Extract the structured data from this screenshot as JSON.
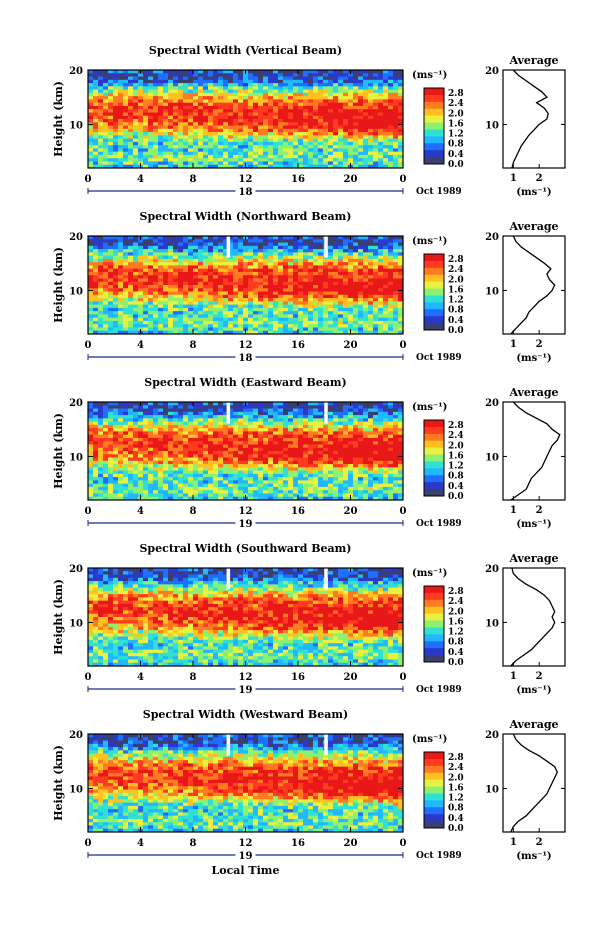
{
  "chart_data": [
    {
      "type": "heatmap",
      "title": "Spectral Width (Vertical Beam)",
      "ylabel": "Height (km)",
      "y_ticks": [
        "20",
        "10"
      ],
      "x_ticks": [
        "0",
        "4",
        "8",
        "12",
        "16",
        "20",
        "0"
      ],
      "date_label": "18",
      "date_suffix": "Oct 1989",
      "unit_label": "(ms⁻¹)",
      "colorbar_ticks": [
        "2.8",
        "2.4",
        "2.0",
        "1.6",
        "1.2",
        "0.8",
        "0.4",
        "0.0"
      ],
      "colorbar_range": [
        0.0,
        2.8
      ],
      "profile_title": "Average",
      "profile_y_ticks": [
        "20",
        "10"
      ],
      "profile_x_ticks": [
        "1",
        "2"
      ],
      "profile_xlabel": "(ms⁻¹)",
      "profile": [
        [
          0.95,
          2
        ],
        [
          1.0,
          3
        ],
        [
          1.1,
          4
        ],
        [
          1.2,
          5
        ],
        [
          1.3,
          6
        ],
        [
          1.45,
          7
        ],
        [
          1.6,
          8
        ],
        [
          1.8,
          9
        ],
        [
          2.0,
          10
        ],
        [
          2.3,
          11
        ],
        [
          2.35,
          12
        ],
        [
          2.2,
          13
        ],
        [
          1.9,
          14
        ],
        [
          2.3,
          15
        ],
        [
          2.1,
          16
        ],
        [
          1.8,
          17
        ],
        [
          1.5,
          18
        ],
        [
          1.2,
          19
        ],
        [
          1.0,
          20
        ]
      ]
    },
    {
      "type": "heatmap",
      "title": "Spectral Width (Northward Beam)",
      "ylabel": "Height (km)",
      "y_ticks": [
        "20",
        "10"
      ],
      "x_ticks": [
        "0",
        "4",
        "8",
        "12",
        "16",
        "20",
        "0"
      ],
      "date_label": "18",
      "date_suffix": "Oct 1989",
      "unit_label": "(ms⁻¹)",
      "colorbar_ticks": [
        "2.8",
        "2.4",
        "2.0",
        "1.6",
        "1.2",
        "0.8",
        "0.4",
        "0.0"
      ],
      "colorbar_range": [
        0.0,
        2.8
      ],
      "profile_title": "Average",
      "profile_y_ticks": [
        "20",
        "10"
      ],
      "profile_x_ticks": [
        "1",
        "2"
      ],
      "profile_xlabel": "(ms⁻¹)",
      "profile": [
        [
          0.9,
          2
        ],
        [
          1.1,
          3
        ],
        [
          1.3,
          4
        ],
        [
          1.5,
          5
        ],
        [
          1.6,
          6
        ],
        [
          1.8,
          7
        ],
        [
          2.0,
          8
        ],
        [
          2.3,
          9
        ],
        [
          2.5,
          10
        ],
        [
          2.6,
          11
        ],
        [
          2.4,
          12
        ],
        [
          2.3,
          13
        ],
        [
          2.45,
          14
        ],
        [
          2.2,
          15
        ],
        [
          1.9,
          16
        ],
        [
          1.6,
          17
        ],
        [
          1.3,
          18
        ],
        [
          1.1,
          19
        ],
        [
          1.0,
          20
        ]
      ]
    },
    {
      "type": "heatmap",
      "title": "Spectral Width (Eastward Beam)",
      "ylabel": "Height (km)",
      "y_ticks": [
        "20",
        "10"
      ],
      "x_ticks": [
        "0",
        "4",
        "8",
        "12",
        "16",
        "20",
        "0"
      ],
      "date_label": "19",
      "date_suffix": "Oct 1989",
      "unit_label": "(ms⁻¹)",
      "colorbar_ticks": [
        "2.8",
        "2.4",
        "2.0",
        "1.6",
        "1.2",
        "0.8",
        "0.4",
        "0.0"
      ],
      "colorbar_range": [
        0.0,
        2.8
      ],
      "profile_title": "Average",
      "profile_y_ticks": [
        "20",
        "10"
      ],
      "profile_x_ticks": [
        "1",
        "2"
      ],
      "profile_xlabel": "(ms⁻¹)",
      "profile": [
        [
          0.9,
          2
        ],
        [
          1.2,
          3
        ],
        [
          1.5,
          4
        ],
        [
          1.6,
          5
        ],
        [
          1.7,
          6
        ],
        [
          1.9,
          7
        ],
        [
          2.1,
          8
        ],
        [
          2.2,
          9
        ],
        [
          2.3,
          10
        ],
        [
          2.4,
          11
        ],
        [
          2.5,
          12
        ],
        [
          2.7,
          13
        ],
        [
          2.8,
          14
        ],
        [
          2.5,
          15
        ],
        [
          2.3,
          16
        ],
        [
          1.9,
          17
        ],
        [
          1.5,
          18
        ],
        [
          1.2,
          19
        ],
        [
          1.0,
          20
        ]
      ]
    },
    {
      "type": "heatmap",
      "title": "Spectral Width (Southward Beam)",
      "ylabel": "Height (km)",
      "y_ticks": [
        "20",
        "10"
      ],
      "x_ticks": [
        "0",
        "4",
        "8",
        "12",
        "16",
        "20",
        "0"
      ],
      "date_label": "19",
      "date_suffix": "Oct 1989",
      "unit_label": "(ms⁻¹)",
      "colorbar_ticks": [
        "2.8",
        "2.4",
        "2.0",
        "1.6",
        "1.2",
        "0.8",
        "0.4",
        "0.0"
      ],
      "colorbar_range": [
        0.0,
        2.8
      ],
      "profile_title": "Average",
      "profile_y_ticks": [
        "20",
        "10"
      ],
      "profile_x_ticks": [
        "1",
        "2"
      ],
      "profile_xlabel": "(ms⁻¹)",
      "profile": [
        [
          0.9,
          2
        ],
        [
          1.1,
          3
        ],
        [
          1.4,
          4
        ],
        [
          1.7,
          5
        ],
        [
          1.9,
          6
        ],
        [
          2.1,
          7
        ],
        [
          2.3,
          8
        ],
        [
          2.5,
          9
        ],
        [
          2.6,
          10
        ],
        [
          2.5,
          11
        ],
        [
          2.6,
          12
        ],
        [
          2.5,
          13
        ],
        [
          2.4,
          14
        ],
        [
          2.2,
          15
        ],
        [
          1.9,
          16
        ],
        [
          1.5,
          17
        ],
        [
          1.2,
          18
        ],
        [
          1.0,
          19
        ],
        [
          0.95,
          20
        ]
      ]
    },
    {
      "type": "heatmap",
      "title": "Spectral Width (Westward Beam)",
      "ylabel": "Height (km)",
      "y_ticks": [
        "20",
        "10"
      ],
      "x_ticks": [
        "0",
        "4",
        "8",
        "12",
        "16",
        "20",
        "0"
      ],
      "date_label": "19",
      "date_suffix": "Oct 1989",
      "unit_label": "(ms⁻¹)",
      "colorbar_ticks": [
        "2.8",
        "2.4",
        "2.0",
        "1.6",
        "1.2",
        "0.8",
        "0.4",
        "0.0"
      ],
      "colorbar_range": [
        0.0,
        2.8
      ],
      "profile_title": "Average",
      "profile_y_ticks": [
        "20",
        "10"
      ],
      "profile_x_ticks": [
        "1",
        "2"
      ],
      "profile_xlabel": "(ms⁻¹)",
      "profile": [
        [
          0.9,
          2
        ],
        [
          1.0,
          3
        ],
        [
          1.2,
          4
        ],
        [
          1.5,
          5
        ],
        [
          1.7,
          6
        ],
        [
          1.9,
          7
        ],
        [
          2.1,
          8
        ],
        [
          2.3,
          9
        ],
        [
          2.4,
          10
        ],
        [
          2.5,
          11
        ],
        [
          2.6,
          12
        ],
        [
          2.7,
          13
        ],
        [
          2.6,
          14
        ],
        [
          2.3,
          15
        ],
        [
          2.0,
          16
        ],
        [
          1.6,
          17
        ],
        [
          1.3,
          18
        ],
        [
          1.1,
          19
        ],
        [
          1.0,
          20
        ]
      ]
    }
  ],
  "figure": {
    "xlabel": "Local Time"
  },
  "colors": {
    "scale": [
      "#3a3f6e",
      "#2b39c9",
      "#1e6fff",
      "#22b8ff",
      "#30e0d0",
      "#8cf070",
      "#e8f040",
      "#ffc020",
      "#ff7a20",
      "#ff3a20",
      "#e81818"
    ],
    "missing": "#ffffff"
  }
}
